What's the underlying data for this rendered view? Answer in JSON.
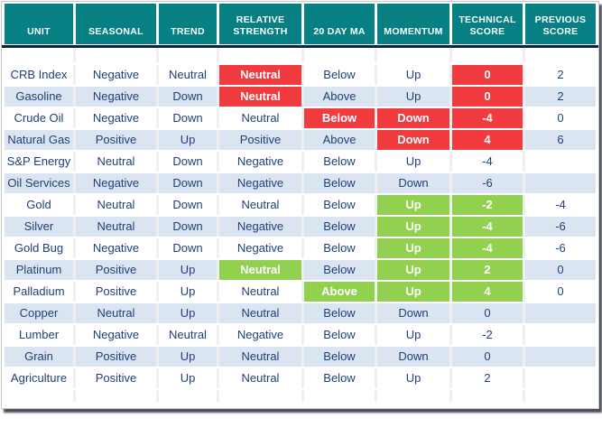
{
  "palette": {
    "header_bg": "#068082",
    "header_text": "#ffffff",
    "underline": "#102437",
    "red": "#f23b3f",
    "green": "#92d050",
    "alt_row": "#dbe5f2",
    "text": "#204078",
    "gap": "#efefef"
  },
  "chart_data": {
    "type": "table",
    "columns": [
      "UNIT",
      "SEASONAL",
      "TREND",
      "RELATIVE STRENGTH",
      "20 DAY MA",
      "MOMENTUM",
      "TECHNICAL SCORE",
      "PREVIOUS SCORE"
    ],
    "column_keys": [
      "unit",
      "seasonal",
      "trend",
      "relative-strength",
      "20-day-ma",
      "momentum",
      "technical-score",
      "previous-score"
    ],
    "highlight_legend": {
      "red": "bearish signal highlight",
      "green": "bullish signal highlight"
    },
    "rows": [
      [
        "CRB Index",
        "Negative",
        "Neutral",
        {
          "t": "Neutral",
          "c": "red"
        },
        "Below",
        "Up",
        {
          "t": "0",
          "c": "red"
        },
        "2"
      ],
      [
        "Gasoline",
        "Negative",
        "Down",
        {
          "t": "Neutral",
          "c": "red"
        },
        "Above",
        "Up",
        {
          "t": "0",
          "c": "red"
        },
        "2"
      ],
      [
        "Crude Oil",
        "Negative",
        "Down",
        "Neutral",
        {
          "t": "Below",
          "c": "red"
        },
        {
          "t": "Down",
          "c": "red"
        },
        {
          "t": "-4",
          "c": "red"
        },
        "0"
      ],
      [
        "Natural Gas",
        "Positive",
        "Up",
        "Positive",
        "Above",
        {
          "t": "Down",
          "c": "red"
        },
        {
          "t": "4",
          "c": "red"
        },
        "6"
      ],
      [
        "S&P Energy",
        "Neutral",
        "Down",
        "Negative",
        "Below",
        "Up",
        "-4",
        ""
      ],
      [
        "Oil Services",
        "Negative",
        "Down",
        "Negative",
        "Below",
        "Down",
        "-6",
        ""
      ],
      [
        "Gold",
        "Neutral",
        "Down",
        "Neutral",
        "Below",
        {
          "t": "Up",
          "c": "green"
        },
        {
          "t": "-2",
          "c": "green"
        },
        "-4"
      ],
      [
        "Silver",
        "Neutral",
        "Down",
        "Negative",
        "Below",
        {
          "t": "Up",
          "c": "green"
        },
        {
          "t": "-4",
          "c": "green"
        },
        "-6"
      ],
      [
        "Gold Bug",
        "Negative",
        "Down",
        "Negative",
        "Below",
        {
          "t": "Up",
          "c": "green"
        },
        {
          "t": "-4",
          "c": "green"
        },
        "-6"
      ],
      [
        "Platinum",
        "Positive",
        "Up",
        {
          "t": "Neutral",
          "c": "green"
        },
        "Below",
        {
          "t": "Up",
          "c": "green"
        },
        {
          "t": "2",
          "c": "green"
        },
        "0"
      ],
      [
        "Palladium",
        "Positive",
        "Up",
        "Neutral",
        {
          "t": "Above",
          "c": "green"
        },
        {
          "t": "Up",
          "c": "green"
        },
        {
          "t": "4",
          "c": "green"
        },
        "0"
      ],
      [
        "Copper",
        "Neutral",
        "Up",
        "Neutral",
        "Below",
        "Down",
        "0",
        ""
      ],
      [
        "Lumber",
        "Negative",
        "Neutral",
        "Negative",
        "Below",
        "Up",
        "-2",
        ""
      ],
      [
        "Grain",
        "Positive",
        "Up",
        "Neutral",
        "Below",
        "Down",
        "0",
        ""
      ],
      [
        "Agriculture",
        "Positive",
        "Up",
        "Neutral",
        "Below",
        "Up",
        "2",
        ""
      ]
    ]
  }
}
